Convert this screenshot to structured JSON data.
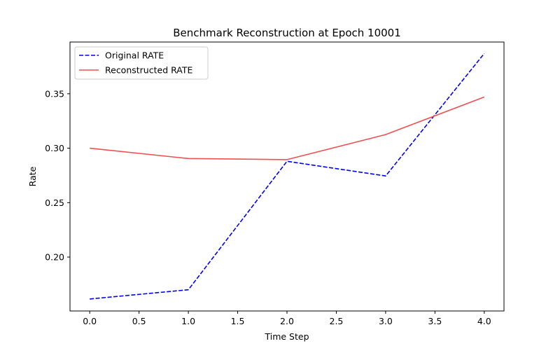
{
  "chart_data": {
    "type": "line",
    "title": "Benchmark Reconstruction at Epoch 10001",
    "xlabel": "Time Step",
    "ylabel": "Rate",
    "x": [
      0,
      1,
      2,
      3,
      4
    ],
    "xlim": [
      -0.2,
      4.2
    ],
    "ylim": [
      0.1505,
      0.3975
    ],
    "xticks": [
      0.0,
      0.5,
      1.0,
      1.5,
      2.0,
      2.5,
      3.0,
      3.5,
      4.0
    ],
    "xtick_labels": [
      "0.0",
      "0.5",
      "1.0",
      "1.5",
      "2.0",
      "2.5",
      "3.0",
      "3.5",
      "4.0"
    ],
    "yticks": [
      0.2,
      0.25,
      0.3,
      0.35
    ],
    "ytick_labels": [
      "0.20",
      "0.25",
      "0.30",
      "0.35"
    ],
    "grid": false,
    "legend_position": "top-left",
    "series": [
      {
        "name": "Original RATE",
        "values": [
          0.1615,
          0.17,
          0.288,
          0.2745,
          0.387
        ],
        "color": "#0000ff",
        "style": "dashed"
      },
      {
        "name": "Reconstructed RATE",
        "values": [
          0.3,
          0.2905,
          0.2895,
          0.3125,
          0.347
        ],
        "color": "#f05050",
        "style": "solid"
      }
    ]
  }
}
